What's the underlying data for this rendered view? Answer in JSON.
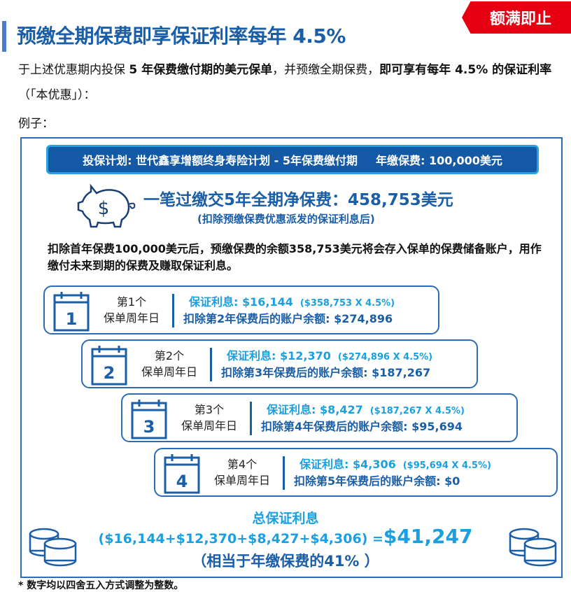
{
  "badge": "额满即止",
  "title": "预缴全期保费即享保证利率每年 4.5%",
  "intro": {
    "p1": "于上述优惠期内投保 ",
    "p1_bold": "5 年保费缴付期的美元保单",
    "p2": "，并预缴全期保费，",
    "p2_bold": "即可享有每年 4.5% 的保证利率",
    "p3": "（「本优惠」）："
  },
  "example_label": "例子：",
  "banner": {
    "plan": "投保计划: 世代鑫享增额终身寿险计划 - 5年保费缴付期",
    "premium": "年缴保费: 100,000美元"
  },
  "net_premium": "一笔过缴交5年全期净保费：458,753美元",
  "net_premium_note": "(扣除预缴保费优惠派发的保证利息后)",
  "paragraph": "扣除首年保费100,000美元后，预缴保费的余额358,753美元将会存入保单的保费储备账户，用作缴付未来到期的保费及赚取保证利息。",
  "anniversary_suffix": "保单周年日",
  "cards": [
    {
      "num": "1",
      "ordinal": "第1个",
      "interest": "保证利息: $16,144",
      "formula": "($358,753 X 4.5%)",
      "balance": "扣除第2年保费后的账户余额: $274,896"
    },
    {
      "num": "2",
      "ordinal": "第2个",
      "interest": "保证利息: $12,370",
      "formula": "($274,896 X 4.5%)",
      "balance": "扣除第3年保费后的账户余额: $187,267"
    },
    {
      "num": "3",
      "ordinal": "第3个",
      "interest": "保证利息: $8,427",
      "formula": "($187,267 X 4.5%)",
      "balance": "扣除第4年保费后的账户余额: $95,694"
    },
    {
      "num": "4",
      "ordinal": "第4个",
      "interest": "保证利息: $4,306",
      "formula": "($95,694 X 4.5%)",
      "balance": "扣除第5年保费后的账户余额: $0"
    }
  ],
  "total": {
    "label": "总保证利息",
    "sum": "($16,144+$12,370+$8,427+$4,306) =",
    "amount": "$41,247",
    "percent": "（相当于年缴保费的41% ）"
  },
  "footnote": "* 数字均以四舍五入方式调整为整数。",
  "colors": {
    "dark_blue": "#1a5ea8",
    "light_blue": "#1aa0e0",
    "badge_red": "#e60012"
  }
}
